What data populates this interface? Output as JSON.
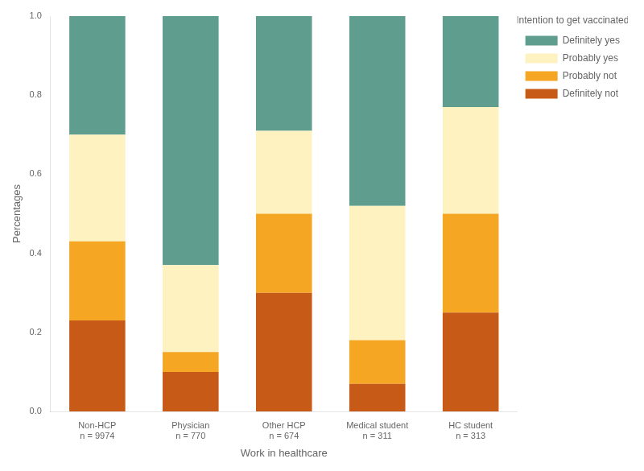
{
  "chart_data": {
    "type": "bar",
    "stacked": true,
    "categories": [
      "Non-HCP\nn = 9974",
      "Physician\nn = 770",
      "Other HCP\nn = 674",
      "Medical student\nn = 311",
      "HC student\nn = 313"
    ],
    "series": [
      {
        "name": "Definitely not",
        "color": "#c85a17",
        "values": [
          0.23,
          0.1,
          0.3,
          0.07,
          0.25
        ]
      },
      {
        "name": "Probably not",
        "color": "#f5a623",
        "values": [
          0.2,
          0.05,
          0.2,
          0.11,
          0.25
        ]
      },
      {
        "name": "Probably yes",
        "color": "#fdf2c0",
        "values": [
          0.27,
          0.22,
          0.21,
          0.34,
          0.27
        ]
      },
      {
        "name": "Definitely yes",
        "color": "#5f9e8f",
        "values": [
          0.3,
          0.63,
          0.29,
          0.48,
          0.23
        ]
      }
    ],
    "legend": "right",
    "legend_title": "Intention to get vaccinated",
    "xlabel": "Work in healthcare",
    "ylabel": "Percentages",
    "ylim": [
      0.0,
      1.0
    ],
    "yticks": [
      {
        "value": 0,
        "label": "0.0"
      },
      0.2,
      0.4,
      0.6,
      0.8,
      {
        "value": 1,
        "label": "1.0"
      }
    ],
    "grid": false
  }
}
